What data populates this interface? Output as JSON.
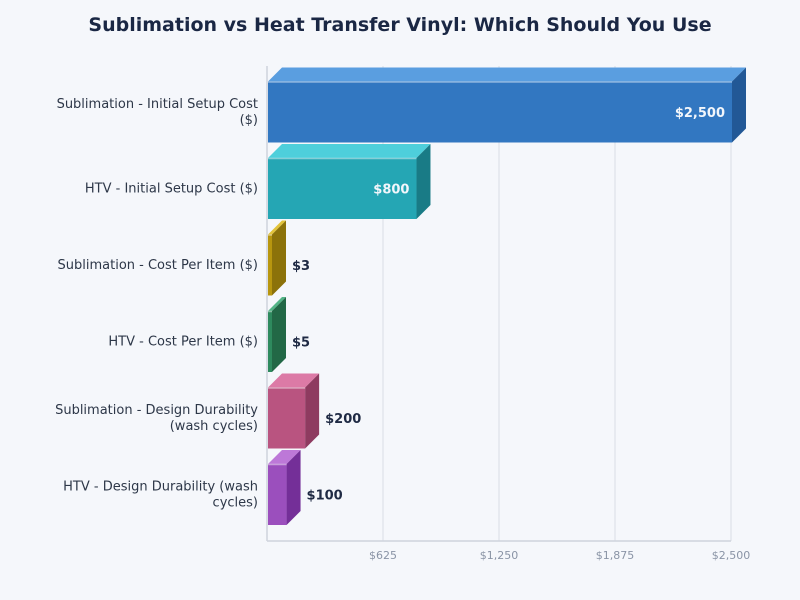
{
  "title": "Sublimation vs Heat Transfer Vinyl: Which Should You Use",
  "chart_data": {
    "type": "bar",
    "orientation": "horizontal",
    "style": "3d",
    "title": "Sublimation vs Heat Transfer Vinyl: Which Should You Use",
    "xlabel": "",
    "ylabel": "",
    "xlim": [
      0,
      2500
    ],
    "x_ticks": [
      "$625",
      "$1,250",
      "$1,875",
      "$2,500"
    ],
    "x_tick_values": [
      625,
      1250,
      1875,
      2500
    ],
    "grid": "vertical",
    "legend": "none",
    "categories": [
      "Sublimation - Initial Setup Cost ($)",
      "HTV - Initial Setup Cost ($)",
      "Sublimation - Cost Per Item ($)",
      "HTV - Cost Per Item ($)",
      "Sublimation - Design Durability (wash cycles)",
      "HTV - Design Durability (wash cycles)"
    ],
    "values": [
      2500,
      800,
      3,
      5,
      200,
      100
    ],
    "value_labels": [
      "$2,500",
      "$800",
      "$3",
      "$5",
      "$200",
      "$100"
    ],
    "colors": [
      {
        "front": "#3277c1",
        "top": "#5a9ee0",
        "side": "#225896"
      },
      {
        "front": "#25a6b4",
        "top": "#4ecfdb",
        "side": "#197b86"
      },
      {
        "front": "#b8960f",
        "top": "#e2c33a",
        "side": "#8c720a"
      },
      {
        "front": "#2e8a5e",
        "top": "#52b486",
        "side": "#226846"
      },
      {
        "front": "#b95480",
        "top": "#dc7aa6",
        "side": "#8e3b60"
      },
      {
        "front": "#9b4fbd",
        "top": "#bd78d8",
        "side": "#742f98"
      }
    ]
  }
}
